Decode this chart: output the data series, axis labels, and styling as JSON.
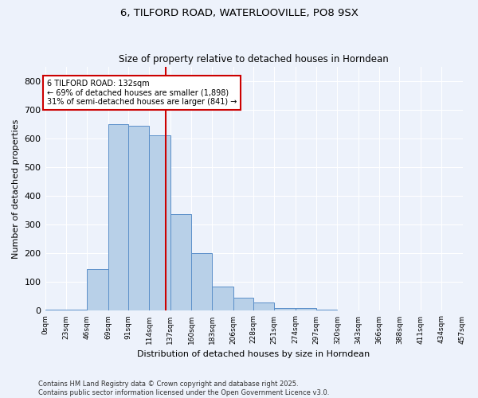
{
  "title_line1": "6, TILFORD ROAD, WATERLOOVILLE, PO8 9SX",
  "title_line2": "Size of property relative to detached houses in Horndean",
  "xlabel": "Distribution of detached houses by size in Horndean",
  "ylabel": "Number of detached properties",
  "footnote_line1": "Contains HM Land Registry data © Crown copyright and database right 2025.",
  "footnote_line2": "Contains public sector information licensed under the Open Government Licence v3.0.",
  "annotation_line1": "6 TILFORD ROAD: 132sqm",
  "annotation_line2": "← 69% of detached houses are smaller (1,898)",
  "annotation_line3": "31% of semi-detached houses are larger (841) →",
  "property_size": 132,
  "bar_color": "#b8d0e8",
  "bar_edge_color": "#5b8fc9",
  "vline_color": "#cc0000",
  "background_color": "#edf2fb",
  "grid_color": "#ffffff",
  "bins": [
    0,
    23,
    46,
    69,
    91,
    114,
    137,
    160,
    183,
    206,
    228,
    251,
    274,
    297,
    320,
    343,
    366,
    388,
    411,
    434,
    457
  ],
  "counts": [
    5,
    5,
    145,
    650,
    645,
    610,
    335,
    200,
    85,
    45,
    28,
    10,
    10,
    5,
    0,
    0,
    0,
    0,
    0,
    0
  ],
  "ylim": [
    0,
    850
  ],
  "yticks": [
    0,
    100,
    200,
    300,
    400,
    500,
    600,
    700,
    800
  ],
  "annotation_box_facecolor": "#ffffff",
  "annotation_box_edgecolor": "#cc0000",
  "title1_fontsize": 9.5,
  "title2_fontsize": 8.5,
  "ylabel_fontsize": 8,
  "xlabel_fontsize": 8,
  "ytick_fontsize": 8,
  "xtick_fontsize": 6.5,
  "annot_fontsize": 7,
  "footnote_fontsize": 6
}
